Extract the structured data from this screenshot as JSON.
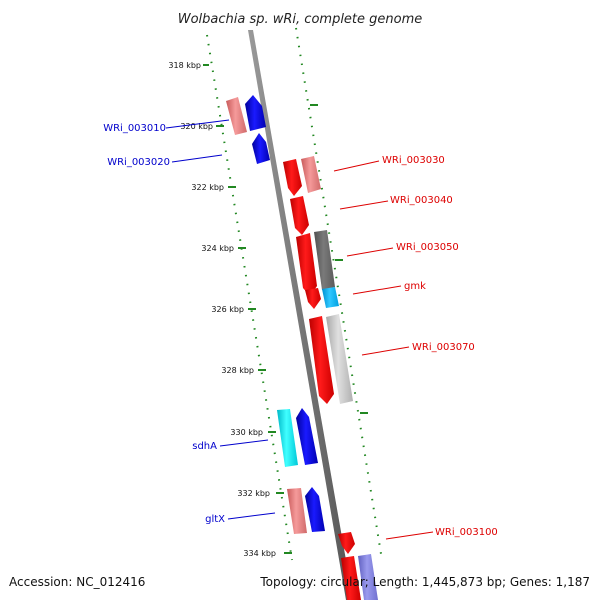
{
  "title": "Wolbachia sp. wRi, complete genome",
  "footer": {
    "accession": "Accession: NC_012416",
    "topology": "Topology: circular; Length: 1,445,873 bp; Genes: 1,187"
  },
  "ticks": [
    "318 kbp",
    "320 kbp",
    "322 kbp",
    "324 kbp",
    "326 kbp",
    "328 kbp",
    "330 kbp",
    "332 kbp",
    "334 kbp"
  ],
  "colors": {
    "forward_label": "#0000cc",
    "reverse_label": "#dd0000",
    "axis_dots": "#228822",
    "backbone": "#888888"
  },
  "labels": {
    "forward": [
      "WRi_003010",
      "WRi_003020",
      "sdhA",
      "gltX"
    ],
    "reverse": [
      "WRi_003030",
      "WRi_003040",
      "WRi_003050",
      "gmk",
      "WRi_003070",
      "WRi_003100"
    ]
  }
}
